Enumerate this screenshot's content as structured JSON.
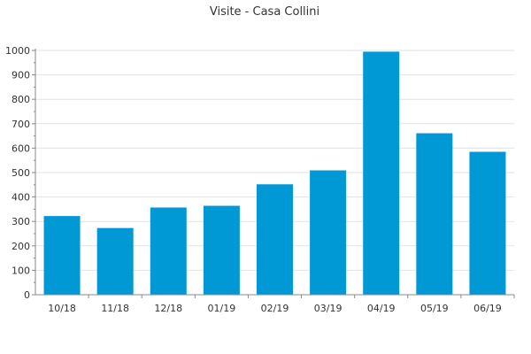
{
  "chart_data": {
    "type": "bar",
    "title": "Visite - Casa Collini",
    "xlabel": "",
    "ylabel": "",
    "categories": [
      "10/18",
      "11/18",
      "12/18",
      "01/19",
      "02/19",
      "03/19",
      "04/19",
      "05/19",
      "06/19"
    ],
    "values": [
      322,
      273,
      357,
      364,
      452,
      509,
      995,
      661,
      585
    ],
    "ylim": [
      0,
      1000
    ],
    "yticks": [
      "0",
      "100",
      "200",
      "300",
      "400",
      "500",
      "600",
      "700",
      "800",
      "900",
      "1000"
    ],
    "grid": true,
    "legend": "none"
  },
  "colors": {
    "bar": "#0099d6",
    "grid": "#e2e2e2",
    "axis": "#888888",
    "text": "#333333"
  }
}
